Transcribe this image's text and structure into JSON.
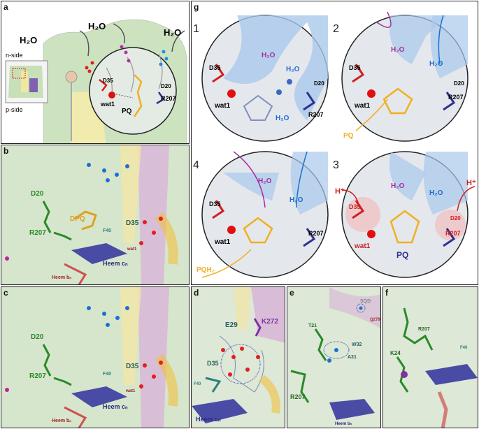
{
  "panels": {
    "a": {
      "label": "a",
      "water": "H₂O",
      "n_side": "n-side",
      "p_side": "p-side",
      "d35": "D35",
      "d20": "D20",
      "r207": "R207",
      "wat1": "wat1",
      "pq": "PQ"
    },
    "b": {
      "label": "b",
      "d20": "D20",
      "r207": "R207",
      "dpq": "DPQ",
      "f40": "F40",
      "d35": "D35",
      "wat1": "wat1",
      "heme_cn": "Heem cₙ",
      "heme_bn": "Heem bₙ"
    },
    "c": {
      "label": "c",
      "d20": "D20",
      "r207": "R207",
      "f40": "F40",
      "d35": "D35",
      "wat1": "wat1",
      "heme_cn": "Heem cₙ",
      "heme_bn": "Heem bₙ"
    },
    "d": {
      "label": "d",
      "e29": "E29",
      "k272": "K272",
      "d35": "D35",
      "f40": "F40",
      "heme_cn": "Heem cₙ"
    },
    "e": {
      "label": "e",
      "sqd": "SQD",
      "q279": "Q279",
      "t21": "T21",
      "w32": "W32",
      "a31": "A31",
      "r207": "R207",
      "heme_bn": "Heem bₙ"
    },
    "f": {
      "label": "f",
      "k24": "K24",
      "r207": "R207",
      "f40": "F40"
    },
    "g": {
      "label": "g",
      "steps": [
        {
          "num": "1",
          "water1": "H₂O",
          "water2": "H₂O",
          "water3": "H₂O",
          "d35": "D35",
          "d20": "D20",
          "r207": "R207",
          "wat1": "wat1"
        },
        {
          "num": "2",
          "water1": "H₂O",
          "water2": "H₂O",
          "d35": "D35",
          "d20": "D20",
          "r207": "R207",
          "wat1": "wat1",
          "pq": "PQ"
        },
        {
          "num": "4",
          "water1": "H₂O",
          "water2": "H₂O",
          "d35": "D35",
          "r207": "R207",
          "wat1": "wat1",
          "pqh2": "PQH₂"
        },
        {
          "num": "3",
          "water1": "H₂O",
          "water2": "H₂O",
          "hplus1": "H⁺",
          "hplus2": "H⁺",
          "d35": "D35",
          "d20": "D20",
          "r207": "R207",
          "wat1": "wat1",
          "pq": "PQ"
        }
      ]
    }
  }
}
